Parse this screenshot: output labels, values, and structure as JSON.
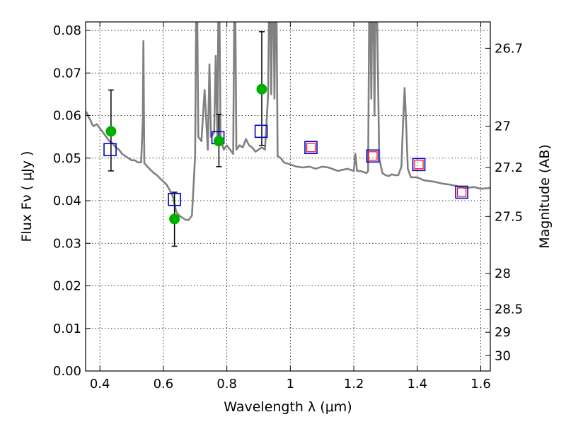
{
  "chart_data": {
    "type": "line",
    "xlabel": "Wavelength  λ (μm)",
    "ylabel": "Flux  Fν  ( μJy )",
    "y2label": "Magnitude (AB)",
    "xlim": [
      0.355,
      1.63
    ],
    "ylim": [
      0.0,
      0.082
    ],
    "grid": true,
    "x_ticks": [
      0.4,
      0.6,
      0.8,
      1.0,
      1.2,
      1.4,
      1.6
    ],
    "x_tick_labels": [
      "0.4",
      "0.6",
      "0.8",
      "1",
      "1.2",
      "1.4",
      "1.6"
    ],
    "y_ticks": [
      0.0,
      0.01,
      0.02,
      0.03,
      0.04,
      0.05,
      0.06,
      0.07,
      0.08
    ],
    "y_tick_labels": [
      "0.00",
      "0.01",
      "0.02",
      "0.03",
      "0.04",
      "0.05",
      "0.06",
      "0.07",
      "0.08"
    ],
    "y2_ticks": [
      {
        "label": "26.7",
        "flux": 0.0758
      },
      {
        "label": "27",
        "flux": 0.0575
      },
      {
        "label": "27.2",
        "flux": 0.0478
      },
      {
        "label": "27.5",
        "flux": 0.0363
      },
      {
        "label": "28",
        "flux": 0.0229
      },
      {
        "label": "28.5",
        "flux": 0.0145
      },
      {
        "label": "29",
        "flux": 0.0091
      },
      {
        "label": "30",
        "flux": 0.0036
      }
    ],
    "colors": {
      "model": "#808080",
      "observed": "#00b000",
      "model_photometry_edge": "#0000cc",
      "predicted_edge": "#ff0000",
      "error_bar": "#000000"
    },
    "series": [
      {
        "kind": "model_spectrum",
        "x": [
          0.355,
          0.36,
          0.365,
          0.37,
          0.375,
          0.38,
          0.39,
          0.4,
          0.41,
          0.42,
          0.43,
          0.44,
          0.45,
          0.46,
          0.47,
          0.48,
          0.49,
          0.5,
          0.51,
          0.52,
          0.53,
          0.535,
          0.537,
          0.54,
          0.55,
          0.56,
          0.57,
          0.58,
          0.59,
          0.6,
          0.61,
          0.62,
          0.63,
          0.64,
          0.65,
          0.66,
          0.67,
          0.68,
          0.69,
          0.7,
          0.705,
          0.71,
          0.72,
          0.73,
          0.74,
          0.745,
          0.75,
          0.76,
          0.765,
          0.77,
          0.775,
          0.78,
          0.79,
          0.8,
          0.81,
          0.82,
          0.825,
          0.83,
          0.84,
          0.85,
          0.86,
          0.87,
          0.88,
          0.89,
          0.9,
          0.91,
          0.92,
          0.93,
          0.935,
          0.94,
          0.945,
          0.95,
          0.955,
          0.96,
          0.97,
          0.98,
          1.0,
          1.02,
          1.04,
          1.06,
          1.08,
          1.1,
          1.12,
          1.15,
          1.18,
          1.2,
          1.205,
          1.21,
          1.22,
          1.24,
          1.245,
          1.25,
          1.255,
          1.26,
          1.265,
          1.27,
          1.28,
          1.29,
          1.3,
          1.31,
          1.32,
          1.33,
          1.34,
          1.35,
          1.355,
          1.36,
          1.365,
          1.37,
          1.38,
          1.4,
          1.42,
          1.45,
          1.48,
          1.5,
          1.52,
          1.55,
          1.58,
          1.6,
          1.63
        ],
        "y": [
          0.061,
          0.0605,
          0.0595,
          0.059,
          0.058,
          0.0575,
          0.058,
          0.057,
          0.056,
          0.055,
          0.054,
          0.0535,
          0.0525,
          0.052,
          0.051,
          0.0505,
          0.05,
          0.0495,
          0.0495,
          0.049,
          0.049,
          0.0585,
          0.0775,
          0.0488,
          0.048,
          0.0472,
          0.0465,
          0.046,
          0.0452,
          0.0445,
          0.0438,
          0.0425,
          0.041,
          0.0375,
          0.0365,
          0.036,
          0.0355,
          0.0355,
          0.0365,
          0.0505,
          0.1,
          0.055,
          0.054,
          0.066,
          0.052,
          0.072,
          0.055,
          0.056,
          0.074,
          0.055,
          0.1,
          0.055,
          0.052,
          0.053,
          0.052,
          0.051,
          0.1,
          0.052,
          0.053,
          0.0525,
          0.0545,
          0.053,
          0.0525,
          0.0515,
          0.052,
          0.0525,
          0.052,
          0.065,
          0.1,
          0.065,
          0.1,
          0.064,
          0.1,
          0.0505,
          0.05,
          0.049,
          0.0485,
          0.048,
          0.0478,
          0.048,
          0.0475,
          0.048,
          0.0478,
          0.047,
          0.0475,
          0.047,
          0.051,
          0.047,
          0.047,
          0.0465,
          0.047,
          0.1,
          0.064,
          0.1,
          0.06,
          0.1,
          0.05,
          0.0465,
          0.046,
          0.0458,
          0.0462,
          0.046,
          0.046,
          0.048,
          0.058,
          0.0665,
          0.058,
          0.0475,
          0.0455,
          0.0455,
          0.0448,
          0.0445,
          0.044,
          0.0438,
          0.0435,
          0.043,
          0.0432,
          0.0428,
          0.043
        ]
      },
      {
        "kind": "observed_photometry",
        "x": [
          0.435,
          0.635,
          0.775,
          0.91
        ],
        "y": [
          0.0563,
          0.0357,
          0.054,
          0.0662
        ],
        "yerr_low": [
          0.047,
          0.0293,
          0.048,
          0.053
        ],
        "yerr_high": [
          0.066,
          0.042,
          0.0603,
          0.0797
        ]
      },
      {
        "kind": "model_photometry",
        "x": [
          0.432,
          0.635,
          0.772,
          0.908,
          1.065,
          1.26,
          1.405,
          1.54
        ],
        "y": [
          0.052,
          0.0403,
          0.0548,
          0.0563,
          0.0525,
          0.0505,
          0.0485,
          0.042
        ]
      },
      {
        "kind": "predicted_photometry",
        "x": [
          1.065,
          1.26,
          1.405,
          1.54
        ],
        "y": [
          0.0525,
          0.0505,
          0.0485,
          0.042
        ]
      }
    ]
  }
}
